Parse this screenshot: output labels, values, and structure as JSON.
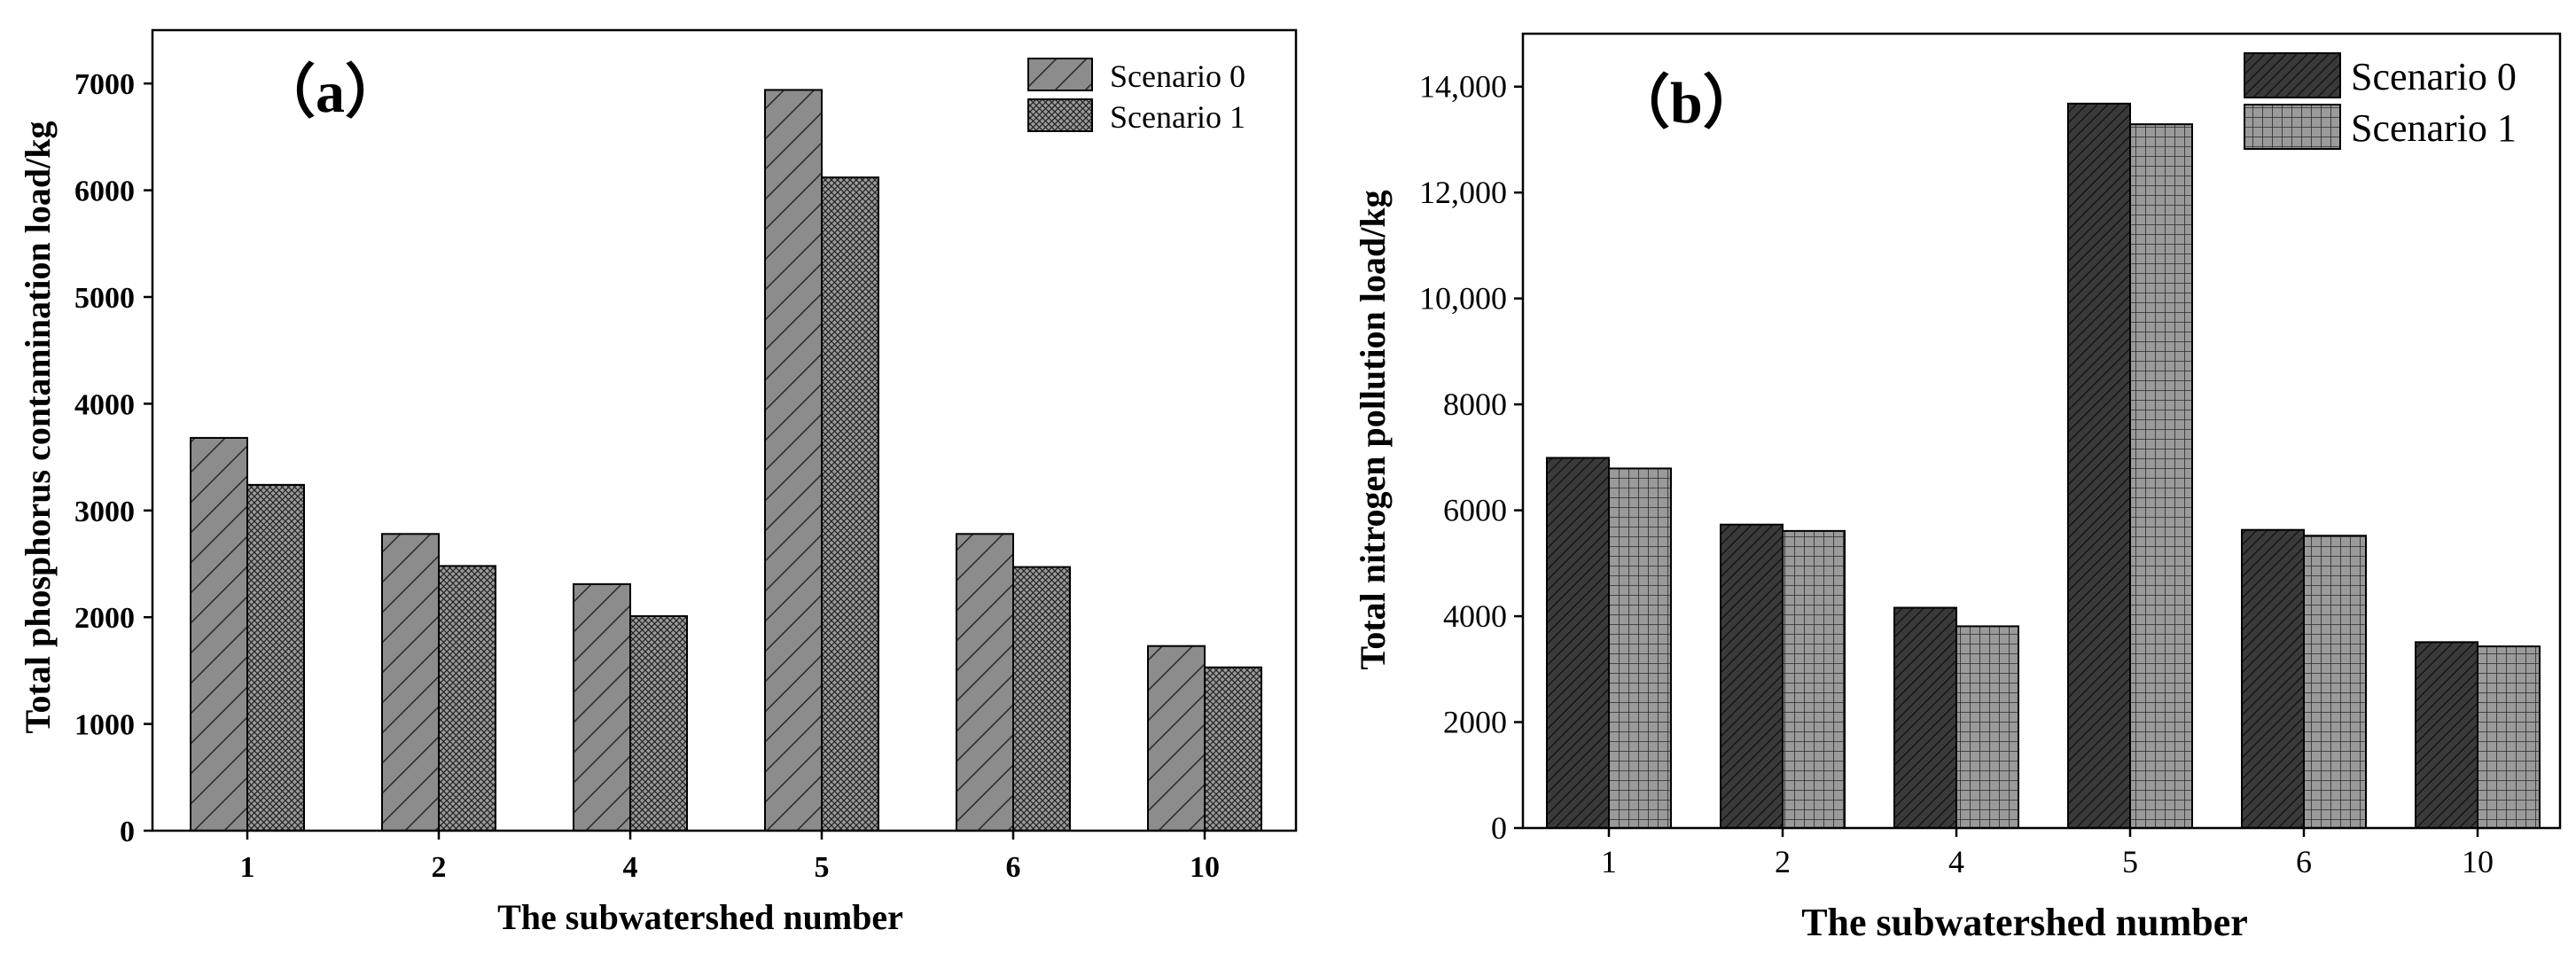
{
  "panels": [
    {
      "panel_label": "（a）",
      "legend": [
        "Scenario 0",
        "Scenario 1"
      ],
      "chart_data": {
        "type": "bar",
        "categories": [
          "1",
          "2",
          "4",
          "5",
          "6",
          "10"
        ],
        "series": [
          {
            "name": "Scenario 0",
            "values": [
              3680,
              2780,
              2310,
              6940,
              2780,
              1730
            ]
          },
          {
            "name": "Scenario 1",
            "values": [
              3240,
              2480,
              2010,
              6120,
              2470,
              1530
            ]
          }
        ],
        "xlabel": "The subwatershed number",
        "ylabel": "Total phosphorus contamination load/kg",
        "ylim": [
          0,
          7500
        ],
        "yticks": [
          0,
          1000,
          2000,
          3000,
          4000,
          5000,
          6000,
          7000
        ],
        "ytick_labels": [
          "0",
          "1000",
          "2000",
          "3000",
          "4000",
          "5000",
          "6000",
          "7000"
        ],
        "grid": false,
        "legend_position": "top-right"
      }
    },
    {
      "panel_label": "（b）",
      "legend": [
        "Scenario 0",
        "Scenario 1"
      ],
      "chart_data": {
        "type": "bar",
        "categories": [
          "1",
          "2",
          "4",
          "5",
          "6",
          "10"
        ],
        "series": [
          {
            "name": "Scenario 0",
            "values": [
              6990,
              5730,
              4160,
              13680,
              5630,
              3510
            ]
          },
          {
            "name": "Scenario 1",
            "values": [
              6790,
              5610,
              3810,
              13290,
              5520,
              3430
            ]
          }
        ],
        "xlabel": "The subwatershed number",
        "ylabel": "Total nitrogen pollution load/kg",
        "ylim": [
          0,
          15000
        ],
        "yticks": [
          0,
          2000,
          4000,
          6000,
          8000,
          10000,
          12000,
          14000
        ],
        "ytick_labels": [
          "0",
          "2000",
          "4000",
          "6000",
          "8000",
          "10,000",
          "12,000",
          "14,000"
        ],
        "grid": false,
        "legend_position": "top-left"
      }
    }
  ]
}
